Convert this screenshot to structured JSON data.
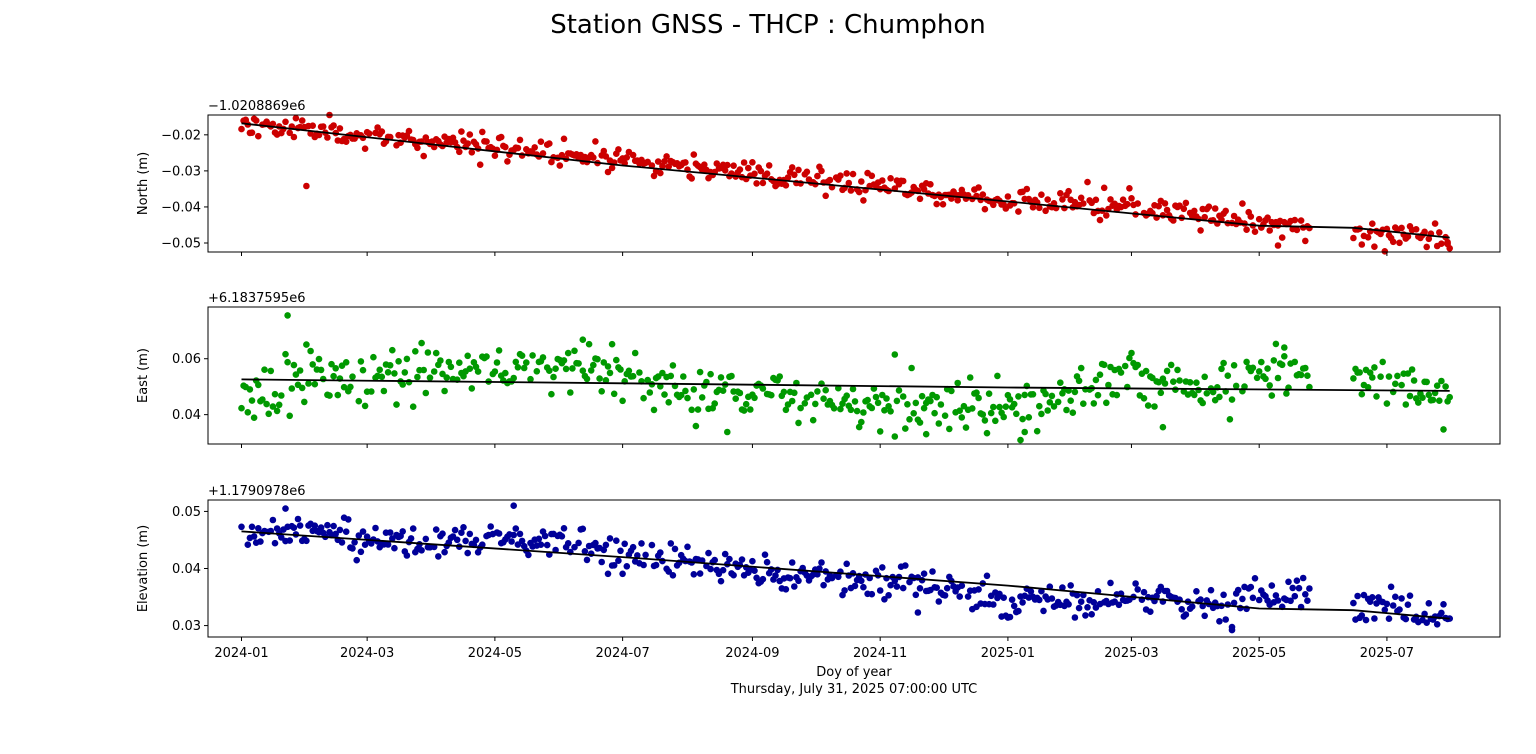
{
  "figure": {
    "title": "Station GNSS - THCP : Chumphon",
    "xlabel": "Doy of year",
    "xsubtitle": "Thursday, July 31, 2025 07:00:00 UTC"
  },
  "chart_data": [
    {
      "type": "scatter",
      "name_key": "north",
      "ylabel": "North (m)",
      "offset_text": "−1.0208869e6",
      "color": "#cc0000",
      "fit_color": "#000000",
      "xlim": [
        "2023-12-16",
        "2025-08-24"
      ],
      "ylim": [
        -0.0525,
        -0.0145
      ],
      "yticks": [
        -0.02,
        -0.03,
        -0.04,
        -0.05
      ],
      "ytick_labels": [
        "−0.02",
        "−0.03",
        "−0.04",
        "−0.05"
      ],
      "xticks": [
        "2024-01-01",
        "2024-03-01",
        "2024-05-01",
        "2024-07-01",
        "2024-09-01",
        "2024-11-01",
        "2025-01-01",
        "2025-03-01",
        "2025-05-01",
        "2025-07-01"
      ],
      "show_xtick_labels": false,
      "trend_points": [
        [
          "2024-01-01",
          -0.0168
        ],
        [
          "2024-07-01",
          -0.0285
        ],
        [
          "2025-01-01",
          -0.0385
        ],
        [
          "2025-05-01",
          -0.0452
        ],
        [
          "2025-06-15",
          -0.0458
        ],
        [
          "2025-07-31",
          -0.0485
        ]
      ],
      "anchors": [
        [
          "2024-01-01",
          -0.0168
        ],
        [
          "2024-03-01",
          -0.0205
        ],
        [
          "2024-05-01",
          -0.0232
        ],
        [
          "2024-07-01",
          -0.0268
        ],
        [
          "2024-09-01",
          -0.031
        ],
        [
          "2024-11-01",
          -0.034
        ],
        [
          "2025-01-01",
          -0.0385
        ],
        [
          "2025-03-01",
          -0.04
        ],
        [
          "2025-04-15",
          -0.043
        ],
        [
          "2025-05-25",
          -0.046
        ],
        [
          "2025-06-15",
          -0.0468
        ],
        [
          "2025-07-31",
          -0.0485
        ]
      ],
      "noise": 0.0017,
      "seed": 11,
      "gap": [
        "2025-05-26",
        "2025-06-14"
      ],
      "outliers": [
        [
          "2024-02-01",
          -0.0342
        ],
        [
          "2024-01-03",
          -0.016
        ],
        [
          "2025-05-10",
          -0.0507
        ],
        [
          "2025-07-30",
          -0.0503
        ]
      ]
    },
    {
      "type": "scatter",
      "name_key": "east",
      "ylabel": "East (m)",
      "offset_text": "+6.1837595e6",
      "color": "#009900",
      "fit_color": "#000000",
      "xlim": [
        "2023-12-16",
        "2025-08-24"
      ],
      "ylim": [
        0.0295,
        0.0785
      ],
      "yticks": [
        0.04,
        0.06
      ],
      "ytick_labels": [
        "0.04",
        "0.06"
      ],
      "xticks": [
        "2024-01-01",
        "2024-03-01",
        "2024-05-01",
        "2024-07-01",
        "2024-09-01",
        "2024-11-01",
        "2025-01-01",
        "2025-03-01",
        "2025-05-01",
        "2025-07-01"
      ],
      "show_xtick_labels": false,
      "trend_points": [
        [
          "2024-01-01",
          0.0526
        ],
        [
          "2024-07-01",
          0.0512
        ],
        [
          "2025-01-01",
          0.0497
        ],
        [
          "2025-07-31",
          0.0485
        ]
      ],
      "anchors": [
        [
          "2024-01-01",
          0.0485
        ],
        [
          "2024-02-01",
          0.054
        ],
        [
          "2024-03-01",
          0.0515
        ],
        [
          "2024-04-01",
          0.0545
        ],
        [
          "2024-05-01",
          0.056
        ],
        [
          "2024-06-01",
          0.058
        ],
        [
          "2024-07-01",
          0.054
        ],
        [
          "2024-08-01",
          0.049
        ],
        [
          "2024-09-01",
          0.047
        ],
        [
          "2024-10-01",
          0.044
        ],
        [
          "2024-11-01",
          0.043
        ],
        [
          "2024-12-01",
          0.043
        ],
        [
          "2025-01-01",
          0.042
        ],
        [
          "2025-02-01",
          0.048
        ],
        [
          "2025-03-01",
          0.053
        ],
        [
          "2025-04-01",
          0.049
        ],
        [
          "2025-05-01",
          0.054
        ],
        [
          "2025-05-25",
          0.055
        ],
        [
          "2025-06-15",
          0.051
        ],
        [
          "2025-07-31",
          0.049
        ]
      ],
      "noise": 0.0048,
      "seed": 23,
      "gap": [
        "2025-05-26",
        "2025-06-14"
      ],
      "outliers": [
        [
          "2024-01-23",
          0.0755
        ],
        [
          "2024-06-12",
          0.0668
        ],
        [
          "2024-11-08",
          0.0615
        ],
        [
          "2024-11-23",
          0.033
        ],
        [
          "2025-01-09",
          0.0338
        ],
        [
          "2025-05-13",
          0.064
        ],
        [
          "2025-03-16",
          0.0355
        ]
      ]
    },
    {
      "type": "scatter",
      "name_key": "elevation",
      "ylabel": "Elevation (m)",
      "offset_text": "+1.1790978e6",
      "color": "#000099",
      "fit_color": "#000000",
      "xlim": [
        "2023-12-16",
        "2025-08-24"
      ],
      "ylim": [
        0.028,
        0.052
      ],
      "yticks": [
        0.05,
        0.04,
        0.03
      ],
      "ytick_labels": [
        "0.05",
        "0.04",
        "0.03"
      ],
      "xticks": [
        "2024-01-01",
        "2024-03-01",
        "2024-05-01",
        "2024-07-01",
        "2024-09-01",
        "2024-11-01",
        "2025-01-01",
        "2025-03-01",
        "2025-05-01",
        "2025-07-01"
      ],
      "xtick_labels": [
        "2024-01",
        "2024-03",
        "2024-05",
        "2024-07",
        "2024-09",
        "2024-11",
        "2025-01",
        "2025-03",
        "2025-05",
        "2025-07"
      ],
      "show_xtick_labels": true,
      "trend_points": [
        [
          "2024-01-01",
          0.0465
        ],
        [
          "2024-07-01",
          0.042
        ],
        [
          "2025-01-01",
          0.037
        ],
        [
          "2025-05-01",
          0.033
        ],
        [
          "2025-06-15",
          0.0327
        ],
        [
          "2025-07-31",
          0.0312
        ]
      ],
      "anchors": [
        [
          "2024-01-01",
          0.0465
        ],
        [
          "2024-02-01",
          0.046
        ],
        [
          "2024-03-01",
          0.0448
        ],
        [
          "2024-04-01",
          0.0445
        ],
        [
          "2024-05-01",
          0.0455
        ],
        [
          "2024-06-01",
          0.0448
        ],
        [
          "2024-07-01",
          0.042
        ],
        [
          "2024-08-01",
          0.041
        ],
        [
          "2024-09-01",
          0.0395
        ],
        [
          "2024-10-01",
          0.0385
        ],
        [
          "2024-11-01",
          0.0375
        ],
        [
          "2024-12-01",
          0.037
        ],
        [
          "2025-01-01",
          0.034
        ],
        [
          "2025-02-01",
          0.0345
        ],
        [
          "2025-03-01",
          0.035
        ],
        [
          "2025-04-01",
          0.033
        ],
        [
          "2025-05-01",
          0.035
        ],
        [
          "2025-05-25",
          0.035
        ],
        [
          "2025-06-15",
          0.0345
        ],
        [
          "2025-07-31",
          0.0315
        ]
      ],
      "noise": 0.0015,
      "seed": 37,
      "gap": [
        "2025-05-26",
        "2025-06-14"
      ],
      "outliers": [
        [
          "2024-05-10",
          0.051
        ],
        [
          "2024-01-22",
          0.0505
        ],
        [
          "2025-04-18",
          0.0292
        ],
        [
          "2024-11-19",
          0.0323
        ]
      ]
    }
  ]
}
